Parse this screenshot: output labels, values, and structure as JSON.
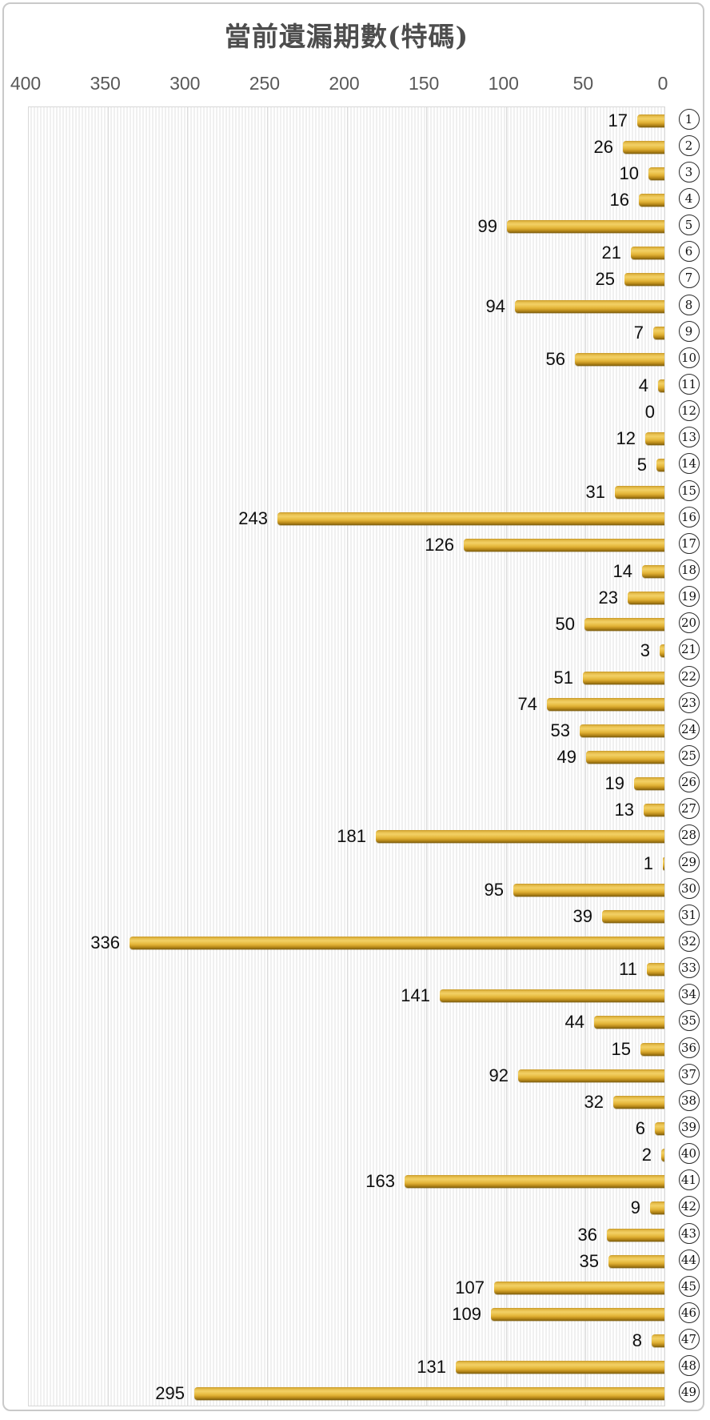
{
  "title": "當前遺漏期數(特碼)",
  "chart_data": {
    "type": "bar",
    "orientation": "horizontal",
    "title": "當前遺漏期數(特碼)",
    "xlabel": "",
    "ylabel": "",
    "xlim": [
      0,
      400
    ],
    "x_axis_reversed": true,
    "x_axis_position": "top",
    "grid": true,
    "x_ticks": [
      400,
      350,
      300,
      250,
      200,
      150,
      100,
      50,
      0
    ],
    "categories": [
      "1",
      "2",
      "3",
      "4",
      "5",
      "6",
      "7",
      "8",
      "9",
      "10",
      "11",
      "12",
      "13",
      "14",
      "15",
      "16",
      "17",
      "18",
      "19",
      "20",
      "21",
      "22",
      "23",
      "24",
      "25",
      "26",
      "27",
      "28",
      "29",
      "30",
      "31",
      "32",
      "33",
      "34",
      "35",
      "36",
      "37",
      "38",
      "39",
      "40",
      "41",
      "42",
      "43",
      "44",
      "45",
      "46",
      "47",
      "48",
      "49"
    ],
    "category_style": "circled-number",
    "values": [
      17,
      26,
      10,
      16,
      99,
      21,
      25,
      94,
      7,
      56,
      4,
      0,
      12,
      5,
      31,
      243,
      126,
      14,
      23,
      50,
      3,
      51,
      74,
      53,
      49,
      19,
      13,
      181,
      1,
      95,
      39,
      336,
      11,
      141,
      44,
      15,
      92,
      32,
      6,
      2,
      163,
      9,
      36,
      35,
      107,
      109,
      8,
      131,
      295
    ],
    "colors": {
      "bar_main": "#E6BB44",
      "bar_highlight": "#F2D066",
      "bar_shadow": "#7E5E0E",
      "value_label": "#0F0F0F",
      "axis_label": "#595959",
      "gridline": "#DCDCDC",
      "plot_border": "#D8D8D8",
      "stripe": "#F0F0F0",
      "title": "#4D4D4D",
      "card_border": "#C9C9C9"
    }
  }
}
